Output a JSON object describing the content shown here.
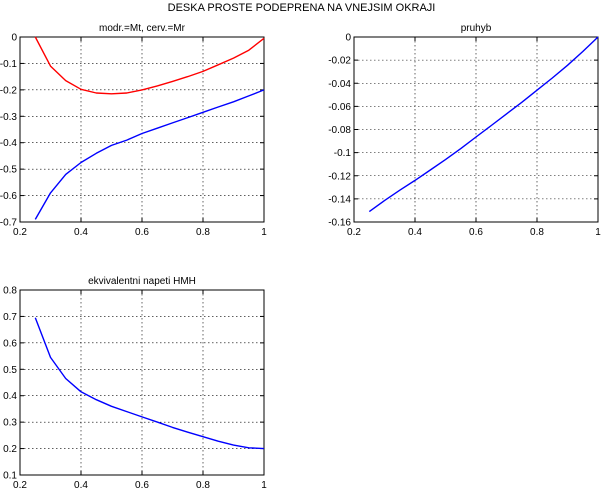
{
  "figure_title": "DESKA PROSTE PODEPRENA NA VNEJSIM OKRAJI",
  "colors": {
    "blue": "#0000ff",
    "red": "#ff0000",
    "axes": "#000000"
  },
  "chart_data": [
    {
      "type": "line",
      "title": "modr.=Mt, cerv.=Mr",
      "xlim": [
        0.2,
        1
      ],
      "ylim": [
        -0.7,
        0
      ],
      "xticks": [
        "0.2",
        "0.4",
        "0.6",
        "0.8",
        "1"
      ],
      "xtick_values": [
        0.2,
        0.4,
        0.6,
        0.8,
        1
      ],
      "yticks": [
        "0",
        "-0.1",
        "-0.2",
        "-0.3",
        "-0.4",
        "-0.5",
        "-0.6",
        "-0.7"
      ],
      "ytick_values": [
        0,
        -0.1,
        -0.2,
        -0.3,
        -0.4,
        -0.5,
        -0.6,
        -0.7
      ],
      "grid": true,
      "series": [
        {
          "color": "#0000ff",
          "x": [
            0.25,
            0.3,
            0.35,
            0.4,
            0.45,
            0.5,
            0.55,
            0.6,
            0.65,
            0.7,
            0.75,
            0.8,
            0.85,
            0.9,
            0.95,
            1.0
          ],
          "y": [
            -0.69,
            -0.59,
            -0.52,
            -0.475,
            -0.44,
            -0.41,
            -0.39,
            -0.365,
            -0.345,
            -0.325,
            -0.305,
            -0.285,
            -0.265,
            -0.245,
            -0.223,
            -0.2
          ]
        },
        {
          "color": "#ff0000",
          "x": [
            0.25,
            0.3,
            0.35,
            0.4,
            0.45,
            0.5,
            0.55,
            0.6,
            0.65,
            0.7,
            0.75,
            0.8,
            0.85,
            0.9,
            0.95,
            1.0
          ],
          "y": [
            0.0,
            -0.11,
            -0.165,
            -0.198,
            -0.212,
            -0.215,
            -0.212,
            -0.2,
            -0.185,
            -0.168,
            -0.15,
            -0.13,
            -0.105,
            -0.08,
            -0.05,
            -0.005
          ]
        }
      ]
    },
    {
      "type": "line",
      "title": "pruhyb",
      "xlim": [
        0.2,
        1
      ],
      "ylim": [
        -0.16,
        0
      ],
      "xticks": [
        "0.2",
        "0.4",
        "0.6",
        "0.8",
        "1"
      ],
      "xtick_values": [
        0.2,
        0.4,
        0.6,
        0.8,
        1
      ],
      "yticks": [
        "0",
        "-0.02",
        "-0.04",
        "-0.06",
        "-0.08",
        "-0.1",
        "-0.12",
        "-0.14",
        "-0.16"
      ],
      "ytick_values": [
        0,
        -0.02,
        -0.04,
        -0.06,
        -0.08,
        -0.1,
        -0.12,
        -0.14,
        -0.16
      ],
      "grid": true,
      "series": [
        {
          "color": "#0000ff",
          "x": [
            0.25,
            0.3,
            0.35,
            0.4,
            0.45,
            0.5,
            0.55,
            0.6,
            0.65,
            0.7,
            0.75,
            0.8,
            0.85,
            0.9,
            0.95,
            1.0
          ],
          "y": [
            -0.151,
            -0.1415,
            -0.1325,
            -0.124,
            -0.115,
            -0.106,
            -0.0965,
            -0.0865,
            -0.0765,
            -0.0665,
            -0.0565,
            -0.046,
            -0.0355,
            -0.0245,
            -0.0125,
            0.0
          ]
        }
      ]
    },
    {
      "type": "line",
      "title": "ekvivalentni napeti HMH",
      "xlim": [
        0.2,
        1
      ],
      "ylim": [
        0.1,
        0.8
      ],
      "xticks": [
        "0.2",
        "0.4",
        "0.6",
        "0.8",
        "1"
      ],
      "xtick_values": [
        0.2,
        0.4,
        0.6,
        0.8,
        1
      ],
      "yticks": [
        "0.8",
        "0.7",
        "0.6",
        "0.5",
        "0.4",
        "0.3",
        "0.2",
        "0.1"
      ],
      "ytick_values": [
        0.8,
        0.7,
        0.6,
        0.5,
        0.4,
        0.3,
        0.2,
        0.1
      ],
      "grid": true,
      "series": [
        {
          "color": "#0000ff",
          "x": [
            0.25,
            0.3,
            0.35,
            0.4,
            0.45,
            0.5,
            0.55,
            0.6,
            0.65,
            0.7,
            0.75,
            0.8,
            0.85,
            0.9,
            0.95,
            1.0
          ],
          "y": [
            0.695,
            0.545,
            0.465,
            0.415,
            0.385,
            0.36,
            0.34,
            0.32,
            0.3,
            0.28,
            0.262,
            0.245,
            0.228,
            0.213,
            0.203,
            0.2
          ]
        }
      ]
    }
  ]
}
